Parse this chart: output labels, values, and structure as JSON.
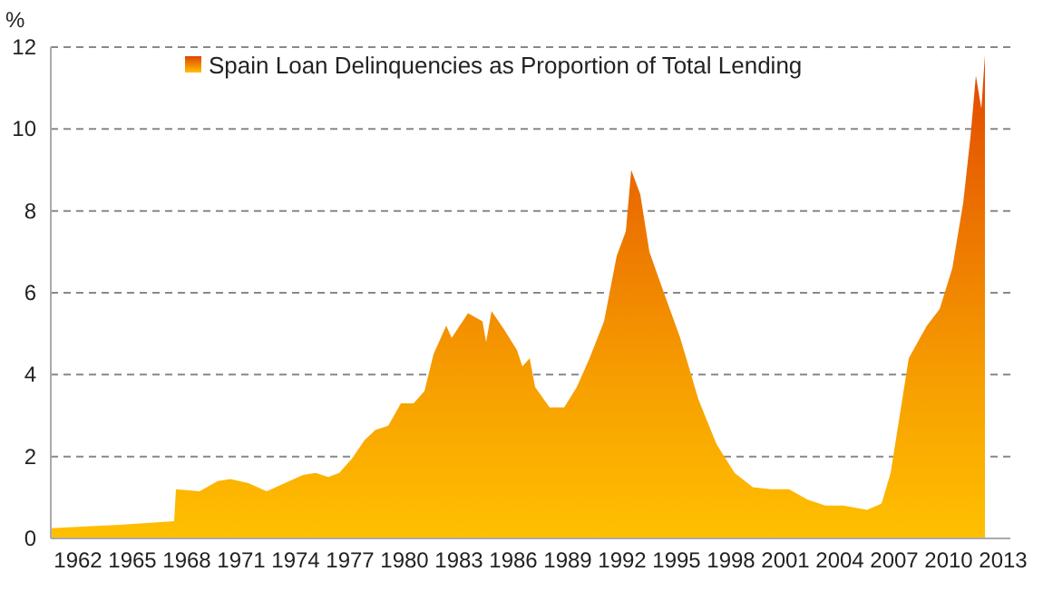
{
  "chart_data": {
    "type": "area",
    "ylabel": "%",
    "legend": "top left",
    "grid": "y",
    "xlim": [
      1960.5,
      2013.4
    ],
    "xticks": [
      1962,
      1965,
      1968,
      1971,
      1974,
      1977,
      1980,
      1983,
      1986,
      1989,
      1992,
      1995,
      1998,
      2001,
      2004,
      2007,
      2010,
      2013
    ],
    "ylim": [
      0,
      12
    ],
    "yticks": [
      0,
      2,
      4,
      6,
      8,
      10,
      12
    ],
    "series": [
      {
        "name": "Spain Loan Delinquencies as Proportion of Total Lending",
        "color": "#ffc000",
        "x": [
          1960.5,
          1962.7,
          1964.3,
          1967.3,
          1967.4,
          1968.7,
          1969.7,
          1970.4,
          1971.4,
          1972.4,
          1973.4,
          1974.4,
          1975.1,
          1975.8,
          1976.4,
          1977.1,
          1977.8,
          1978.4,
          1979.1,
          1979.8,
          1980.5,
          1981.1,
          1981.6,
          1982.3,
          1982.6,
          1983.5,
          1984.3,
          1984.5,
          1984.8,
          1985.5,
          1986.2,
          1986.5,
          1986.9,
          1987.2,
          1988,
          1988.8,
          1989.5,
          1990.2,
          1991,
          1991.7,
          1992.2,
          1992.5,
          1993,
          1993.5,
          1994.3,
          1995.2,
          1996.2,
          1997.2,
          1998.2,
          1999.2,
          2000.2,
          2001.2,
          2002.2,
          2003.2,
          2004.2,
          2005.5,
          2006.3,
          2006.8,
          2007.3,
          2007.8,
          2008.8,
          2009.5,
          2010.2,
          2010.8,
          2011.2,
          2011.5,
          2011.8,
          2012
        ],
        "values": [
          0.25,
          0.3,
          0.33,
          0.42,
          1.2,
          1.15,
          1.4,
          1.45,
          1.35,
          1.15,
          1.35,
          1.55,
          1.6,
          1.5,
          1.6,
          1.95,
          2.4,
          2.65,
          2.75,
          3.3,
          3.3,
          3.6,
          4.5,
          5.2,
          4.9,
          5.5,
          5.3,
          4.8,
          5.55,
          5.1,
          4.6,
          4.2,
          4.4,
          3.7,
          3.2,
          3.2,
          3.7,
          4.4,
          5.3,
          6.9,
          7.5,
          9.0,
          8.4,
          7.0,
          6.0,
          4.9,
          3.4,
          2.3,
          1.6,
          1.25,
          1.2,
          1.2,
          0.95,
          0.8,
          0.8,
          0.7,
          0.85,
          1.6,
          3.0,
          4.4,
          5.2,
          5.6,
          6.6,
          8.2,
          9.8,
          11.3,
          10.5,
          11.8
        ]
      }
    ]
  }
}
